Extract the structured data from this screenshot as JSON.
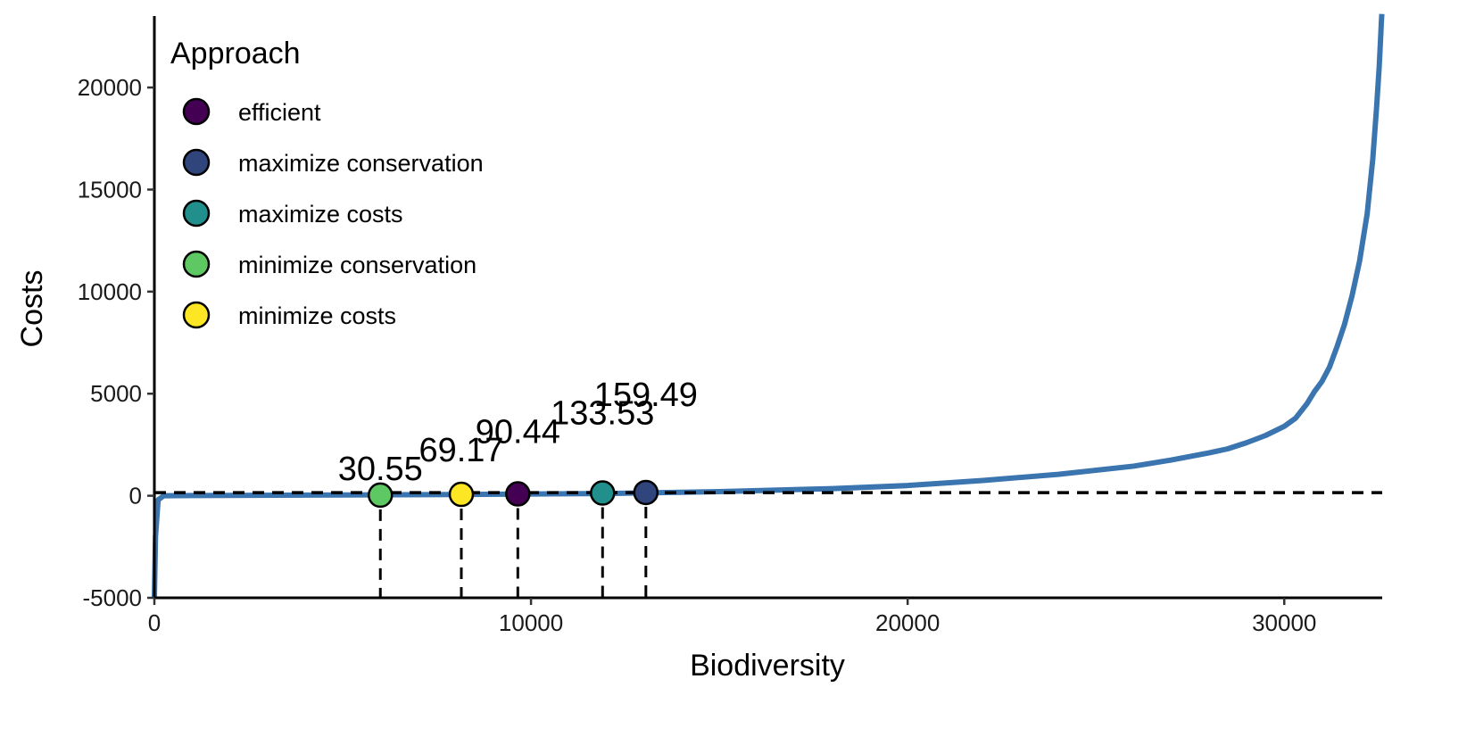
{
  "chart_data": {
    "type": "line",
    "xlabel": "Biodiversity",
    "ylabel": "Costs",
    "xlim": [
      0,
      32600
    ],
    "ylim": [
      -5000,
      23500
    ],
    "x_ticks": [
      0,
      10000,
      20000,
      30000
    ],
    "y_ticks": [
      -5000,
      0,
      5000,
      10000,
      15000,
      20000
    ],
    "grid": false,
    "line_color": "#3b75af",
    "reference_line_y": 150,
    "series": [
      {
        "type": "line",
        "x": [
          0,
          30,
          100,
          250,
          1000,
          4000,
          8000,
          12000,
          15000,
          18000,
          20000,
          22000,
          24000,
          26000,
          27000,
          28000,
          28500,
          29000,
          29500,
          30000,
          30300,
          30600,
          30800,
          31000,
          31200,
          31400,
          31600,
          31800,
          32000,
          32200,
          32350,
          32450,
          32520,
          32560,
          32580,
          32590
        ],
        "y": [
          -5000,
          -2000,
          -200,
          0,
          10,
          30,
          60,
          110,
          200,
          350,
          500,
          750,
          1050,
          1450,
          1750,
          2100,
          2300,
          2600,
          2950,
          3400,
          3800,
          4500,
          5100,
          5600,
          6300,
          7300,
          8400,
          9800,
          11500,
          13800,
          16500,
          19000,
          21000,
          22500,
          23300,
          23600
        ]
      }
    ],
    "legend": {
      "title": "Approach",
      "position": "top-left",
      "entries": [
        {
          "label": "efficient",
          "color": "#440154"
        },
        {
          "label": "maximize conservation",
          "color": "#30457b"
        },
        {
          "label": "maximize costs",
          "color": "#21908d"
        },
        {
          "label": "minimize conservation",
          "color": "#5ec962"
        },
        {
          "label": "minimize costs",
          "color": "#fde725"
        }
      ]
    },
    "points": [
      {
        "approach": "minimize conservation",
        "x": 6000,
        "y": 30.55,
        "label": "30.55",
        "color": "#5ec962"
      },
      {
        "approach": "minimize costs",
        "x": 8150,
        "y": 69.17,
        "label": "69.17",
        "color": "#fde725"
      },
      {
        "approach": "efficient",
        "x": 9650,
        "y": 90.44,
        "label": "90.44",
        "color": "#440154"
      },
      {
        "approach": "maximize costs",
        "x": 11900,
        "y": 133.53,
        "label": "133.53",
        "color": "#21908d"
      },
      {
        "approach": "maximize conservation",
        "x": 13050,
        "y": 159.49,
        "label": "159.49",
        "color": "#30457b"
      }
    ]
  }
}
